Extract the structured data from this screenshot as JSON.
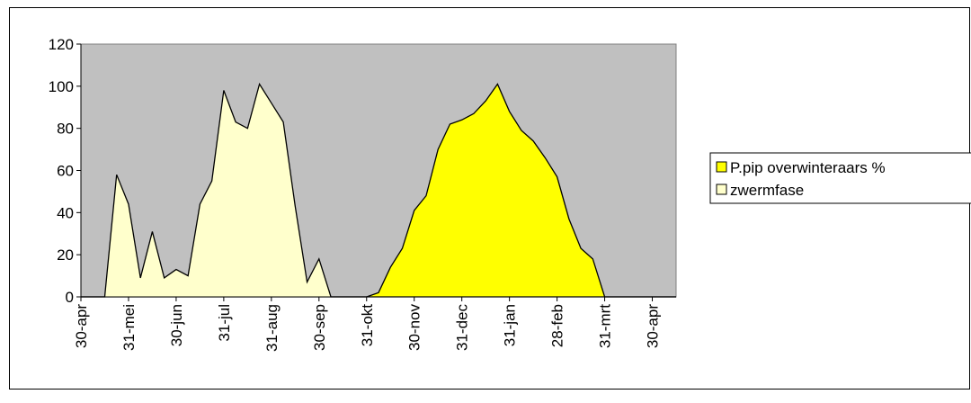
{
  "chart_data": {
    "type": "area",
    "categories": [
      "30-apr",
      null,
      null,
      null,
      "31-mei",
      null,
      null,
      null,
      "30-jun",
      null,
      null,
      null,
      "31-jul",
      null,
      null,
      null,
      "31-aug",
      null,
      null,
      null,
      "30-sep",
      null,
      null,
      null,
      "31-okt",
      null,
      null,
      null,
      "30-nov",
      null,
      null,
      null,
      "31-dec",
      null,
      null,
      null,
      "31-jan",
      null,
      null,
      null,
      "28-feb",
      null,
      null,
      null,
      "31-mrt",
      null,
      null,
      null,
      "30-apr",
      null,
      null
    ],
    "series": [
      {
        "name": "P.pip overwinteraars %",
        "color": "#ffff00",
        "values": [
          0,
          0,
          0,
          0,
          0,
          0,
          0,
          0,
          0,
          0,
          0,
          0,
          0,
          0,
          0,
          0,
          0,
          0,
          0,
          0,
          0,
          0,
          0,
          0,
          0,
          2,
          14,
          23,
          41,
          48,
          70,
          82,
          84,
          87,
          93,
          101,
          88,
          79,
          74,
          66,
          57,
          37,
          23,
          18,
          0,
          0,
          0,
          0,
          0,
          0,
          0
        ]
      },
      {
        "name": "zwermfase",
        "color": "#ffffcc",
        "values": [
          0,
          0,
          0,
          58,
          44,
          9,
          31,
          9,
          13,
          10,
          44,
          55,
          98,
          83,
          80,
          101,
          92,
          83,
          43,
          7,
          18,
          0,
          0,
          0,
          0,
          0,
          0,
          0,
          0,
          0,
          0,
          0,
          0,
          0,
          0,
          0,
          0,
          0,
          0,
          0,
          0,
          0,
          0,
          0,
          0,
          0,
          0,
          0,
          0,
          0,
          0
        ]
      }
    ],
    "ylim": [
      0,
      120
    ],
    "yticks": [
      0,
      20,
      40,
      60,
      80,
      100,
      120
    ],
    "plot_background": "#c0c0c0",
    "legend": "right"
  }
}
